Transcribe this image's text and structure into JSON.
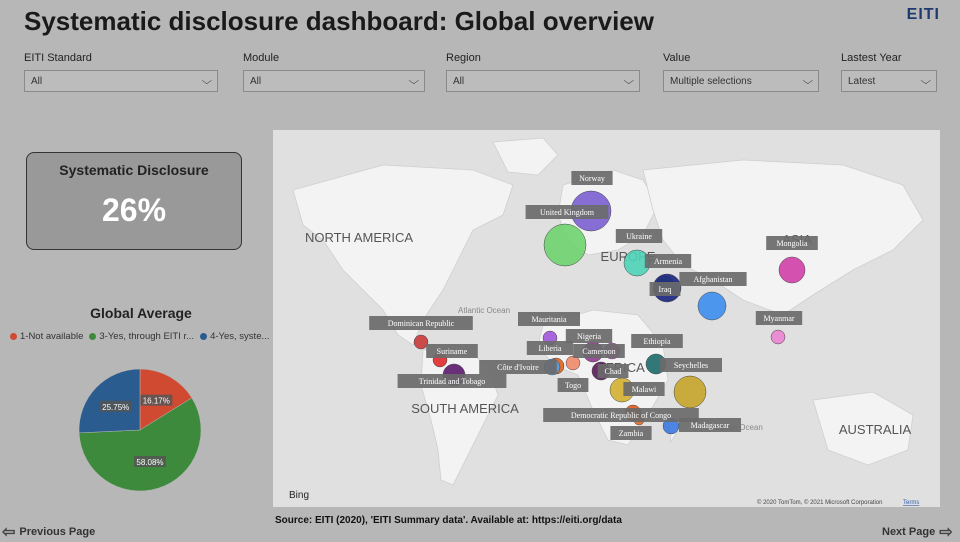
{
  "title": "Systematic disclosure dashboard: Global overview",
  "logo": "EITI",
  "filters": [
    {
      "label": "EITI Standard",
      "value": "All"
    },
    {
      "label": "Module",
      "value": "All"
    },
    {
      "label": "Region",
      "value": "All"
    },
    {
      "label": "Value",
      "value": "Multiple selections"
    },
    {
      "label": "Lastest Year",
      "value": "Latest"
    }
  ],
  "kpi": {
    "title": "Systematic Disclosure",
    "value": "26%"
  },
  "global_average": {
    "title": "Global Average",
    "legend": [
      {
        "label": "1-Not available",
        "color": "#d04a32"
      },
      {
        "label": "3-Yes, through EITI r...",
        "color": "#3d8a3d"
      },
      {
        "label": "4-Yes, syste...",
        "color": "#2b5c8f"
      }
    ]
  },
  "chart_data": {
    "type": "pie",
    "categories": [
      "1-Not available",
      "3-Yes, through EITI r...",
      "4-Yes, syste..."
    ],
    "values": [
      16.17,
      58.08,
      25.75
    ],
    "labels": [
      "16.17%",
      "58.08%",
      "25.75%"
    ],
    "colors": [
      "#d04a32",
      "#3d8a3d",
      "#2b5c8f"
    ]
  },
  "map": {
    "continents": [
      "NORTH AMERICA",
      "SOUTH AMERICA",
      "AFRICA",
      "EUROPE",
      "ASIA",
      "AUSTRALIA"
    ],
    "oceans": [
      "Atlantic Ocean",
      "Indian Ocean"
    ],
    "countries": [
      {
        "name": "Norway",
        "color": "#7b5fd0"
      },
      {
        "name": "United Kingdom",
        "color": "#6fd36f"
      },
      {
        "name": "Ukraine",
        "color": "#4fd4b8"
      },
      {
        "name": "Armenia",
        "color": "#58b878"
      },
      {
        "name": "Iraq",
        "color": "#1a237e"
      },
      {
        "name": "Afghanistan",
        "color": "#3d8ef0"
      },
      {
        "name": "Mongolia",
        "color": "#d13fa8"
      },
      {
        "name": "Myanmar",
        "color": "#ea85d0"
      },
      {
        "name": "Mauritania",
        "color": "#a155d8"
      },
      {
        "name": "Nigeria",
        "color": "#8e3b8e"
      },
      {
        "name": "Cameroon",
        "color": "#c94fcf"
      },
      {
        "name": "Ethiopia",
        "color": "#1e6a6a"
      },
      {
        "name": "Seychelles",
        "color": "#c7a42a"
      },
      {
        "name": "Liberia",
        "color": "#e0631a"
      },
      {
        "name": "Côte d'Ivoire",
        "color": "#4aa0ef"
      },
      {
        "name": "Togo",
        "color": "#f08a6a"
      },
      {
        "name": "Chad",
        "color": "#5a1a5a"
      },
      {
        "name": "Malawi",
        "color": "#d4b030"
      },
      {
        "name": "Democratic Republic of Congo",
        "color": "#e35a1a"
      },
      {
        "name": "Zambia",
        "color": "#e06a20"
      },
      {
        "name": "Madagascar",
        "color": "#3a7ae0"
      },
      {
        "name": "Dominican Republic",
        "color": "#c93a3a"
      },
      {
        "name": "Suriname",
        "color": "#e02a2a"
      },
      {
        "name": "Trinidad and Tobago",
        "color": "#5a1a6a"
      }
    ],
    "bing": "Bing",
    "copyright": "© 2020 TomTom, © 2021 Microsoft Corporation",
    "terms": "Terms"
  },
  "source": "Source: EITI (2020), 'EITI Summary data'. Available at: https://eiti.org/data",
  "nav": {
    "previous": "Previous Page",
    "next": "Next Page"
  }
}
